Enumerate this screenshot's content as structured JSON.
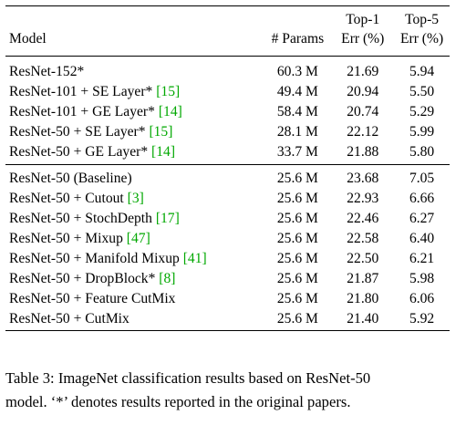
{
  "table": {
    "headers": {
      "model": "Model",
      "params": "# Params",
      "top1_line1": "Top-1",
      "top1_line2": "Err (%)",
      "top5_line1": "Top-5",
      "top5_line2": "Err (%)"
    },
    "group_1": [
      {
        "model": "ResNet-152*",
        "cite": "",
        "params": "60.3 M",
        "top1": "21.69",
        "top5": "5.94"
      },
      {
        "model": "ResNet-101 + SE Layer* ",
        "cite": "[15]",
        "params": "49.4 M",
        "top1": "20.94",
        "top5": "5.50"
      },
      {
        "model": "ResNet-101 + GE Layer* ",
        "cite": "[14]",
        "params": "58.4 M",
        "top1": "20.74",
        "top5": "5.29"
      },
      {
        "model": "ResNet-50 + SE Layer* ",
        "cite": "[15]",
        "params": "28.1 M",
        "top1": "22.12",
        "top5": "5.99"
      },
      {
        "model": "ResNet-50 + GE Layer* ",
        "cite": "[14]",
        "params": "33.7 M",
        "top1": "21.88",
        "top5": "5.80"
      }
    ],
    "group_2": [
      {
        "model": "ResNet-50 (Baseline)",
        "cite": "",
        "params": "25.6 M",
        "top1": "23.68",
        "top5": "7.05"
      },
      {
        "model": "ResNet-50 + Cutout ",
        "cite": "[3]",
        "params": "25.6 M",
        "top1": "22.93",
        "top5": "6.66"
      },
      {
        "model": "ResNet-50 + StochDepth ",
        "cite": "[17]",
        "params": "25.6 M",
        "top1": "22.46",
        "top5": "6.27"
      },
      {
        "model": "ResNet-50 + Mixup ",
        "cite": "[47]",
        "params": "25.6 M",
        "top1": "22.58",
        "top5": "6.40"
      },
      {
        "model": "ResNet-50 + Manifold Mixup ",
        "cite": "[41]",
        "params": "25.6 M",
        "top1": "22.50",
        "top5": "6.21"
      },
      {
        "model": "ResNet-50 + DropBlock* ",
        "cite": "[8]",
        "params": "25.6 M",
        "top1": "21.87",
        "top5": "5.98"
      },
      {
        "model": "ResNet-50 + Feature CutMix",
        "cite": "",
        "params": "25.6 M",
        "top1": "21.80",
        "top5": "6.06"
      },
      {
        "model": "ResNet-50 + CutMix",
        "cite": "",
        "params": "25.6 M",
        "top1": "21.40",
        "top5": "5.92"
      }
    ]
  },
  "caption": {
    "line_1": "Table 3: ImageNet classification results based on ResNet-50",
    "line_2": "model. ‘*’ denotes results reported in the original papers."
  },
  "colors": {
    "citation": "#00a800",
    "text": "#000000",
    "rules": "#000000"
  }
}
